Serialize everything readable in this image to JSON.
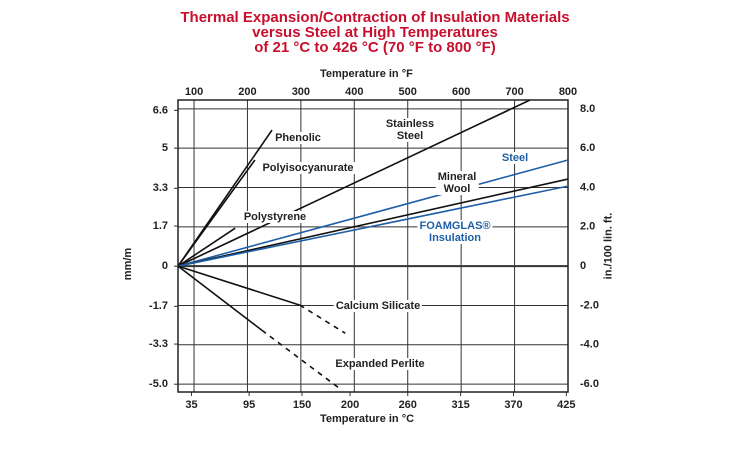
{
  "chart_data": {
    "type": "line",
    "title": "Thermal Expansion/Contraction of Insulation Materials\nversus Steel at High Temperatures\nof 21 °C to 426 °C (70 °F to 800 °F)",
    "x_label": "Temperature in °F",
    "x2_label": "Temperature in °C",
    "y_label": "in./100 lin. ft.",
    "y2_label": "mm/m",
    "xlim": [
      70,
      800
    ],
    "xticks": [
      100,
      200,
      300,
      400,
      500,
      600,
      700,
      800
    ],
    "x2lim": [
      21,
      426.7
    ],
    "x2ticks": [
      35,
      95,
      150,
      200,
      260,
      315,
      370,
      425
    ],
    "ylim": [
      -6.4,
      8.45
    ],
    "yticks": [
      {
        "value": 8,
        "label": "8.0"
      },
      {
        "value": 6,
        "label": "6.0"
      },
      {
        "value": 4,
        "label": "4.0"
      },
      {
        "value": 2,
        "label": "2.0"
      },
      0,
      {
        "value": -2,
        "label": "-2.0"
      },
      {
        "value": -4,
        "label": "-4.0"
      },
      {
        "value": -6,
        "label": "-6.0"
      }
    ],
    "y2lim": [
      -5.33,
      7.04
    ],
    "y2ticks": [
      6.6,
      5,
      3.3,
      1.7,
      0,
      -1.7,
      -3.3,
      {
        "value": -5,
        "label": "-5.0"
      }
    ],
    "grid": true,
    "series": [
      {
        "name": "Phenolic",
        "color": "#111111",
        "x": [
          70,
          246
        ],
        "values": [
          0,
          6.92
        ]
      },
      {
        "name": "Polyisocyanurate",
        "color": "#111111",
        "x": [
          70,
          214
        ],
        "values": [
          0,
          5.4
        ]
      },
      {
        "name": "Polystyrene",
        "color": "#111111",
        "x": [
          70,
          177
        ],
        "values": [
          0,
          1.93
        ]
      },
      {
        "name": "Stainless\nSteel",
        "color": "#111111",
        "x": [
          70,
          729
        ],
        "values": [
          0,
          8.45
        ]
      },
      {
        "name": "Steel",
        "color": "#1f5fa8",
        "x": [
          70,
          800
        ],
        "values": [
          0,
          5.4
        ]
      },
      {
        "name": "Mineral\nWool",
        "color": "#111111",
        "x": [
          70,
          800
        ],
        "values": [
          0,
          4.43
        ]
      },
      {
        "name": "FOAMGLAS®\nInsulation",
        "color": "#1f5fa8",
        "x": [
          70,
          800
        ],
        "values": [
          0,
          4.07
        ]
      },
      {
        "name": "Calcium Silicate",
        "color": "#111111",
        "x": [
          70,
          298,
          383
        ],
        "values": [
          0,
          -1.98,
          -3.41
        ],
        "line_styles": [
          "solid",
          "dashed"
        ]
      },
      {
        "name": "Expanded Perlite",
        "color": "#111111",
        "x": [
          70,
          227,
          377
        ],
        "values": [
          0,
          -3.26,
          -6.31
        ],
        "line_styles": [
          "solid",
          "dashed"
        ]
      }
    ]
  }
}
